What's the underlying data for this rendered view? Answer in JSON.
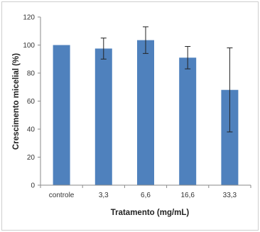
{
  "chart_data": {
    "type": "bar",
    "title": "",
    "xlabel": "Tratamento (mg/mL)",
    "ylabel": "Crescimento micelial (%)",
    "categories": [
      "controle",
      "3,3",
      "6,6",
      "16,6",
      "33,3"
    ],
    "values": [
      100,
      97.5,
      103.5,
      91,
      68
    ],
    "error": [
      0,
      7.5,
      9.5,
      8,
      30
    ],
    "ylim": [
      0,
      120
    ],
    "yticks": [
      0,
      20,
      40,
      60,
      80,
      100,
      120
    ],
    "grid": false,
    "legend": "none",
    "bar_color": "#4f81bd"
  }
}
